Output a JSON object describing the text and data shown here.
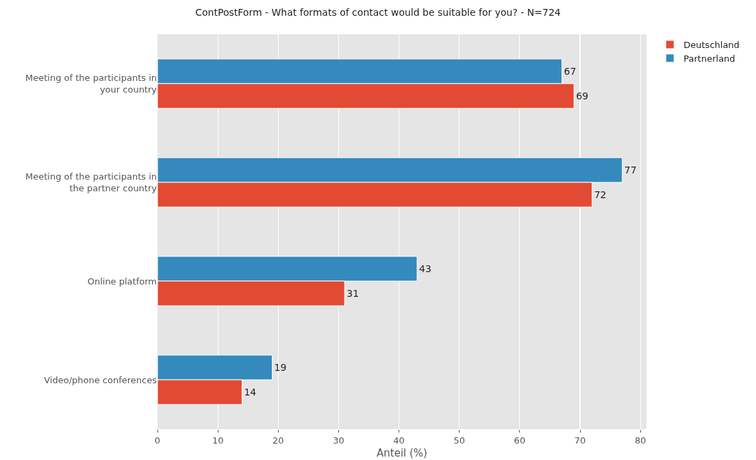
{
  "chart_data": {
    "type": "bar",
    "orientation": "horizontal",
    "title": "ContPostForm - What formats of contact would be suitable for you? - N=724",
    "xlabel": "Anteil (%)",
    "categories": [
      "Meeting of the participants in your country",
      "Meeting of the participants in the partner country",
      "Online platform",
      "Video/phone conferences"
    ],
    "series": [
      {
        "name": "Deutschland",
        "color": "#e24a33",
        "values": [
          69,
          72,
          31,
          14
        ]
      },
      {
        "name": "Partnerland",
        "color": "#348abd",
        "values": [
          67,
          77,
          43,
          19
        ]
      }
    ],
    "xlim": [
      0,
      81
    ],
    "xticks": [
      0,
      10,
      20,
      30,
      40,
      50,
      60,
      70,
      80
    ],
    "grid": true,
    "legend": "top right",
    "data_labels": true
  }
}
